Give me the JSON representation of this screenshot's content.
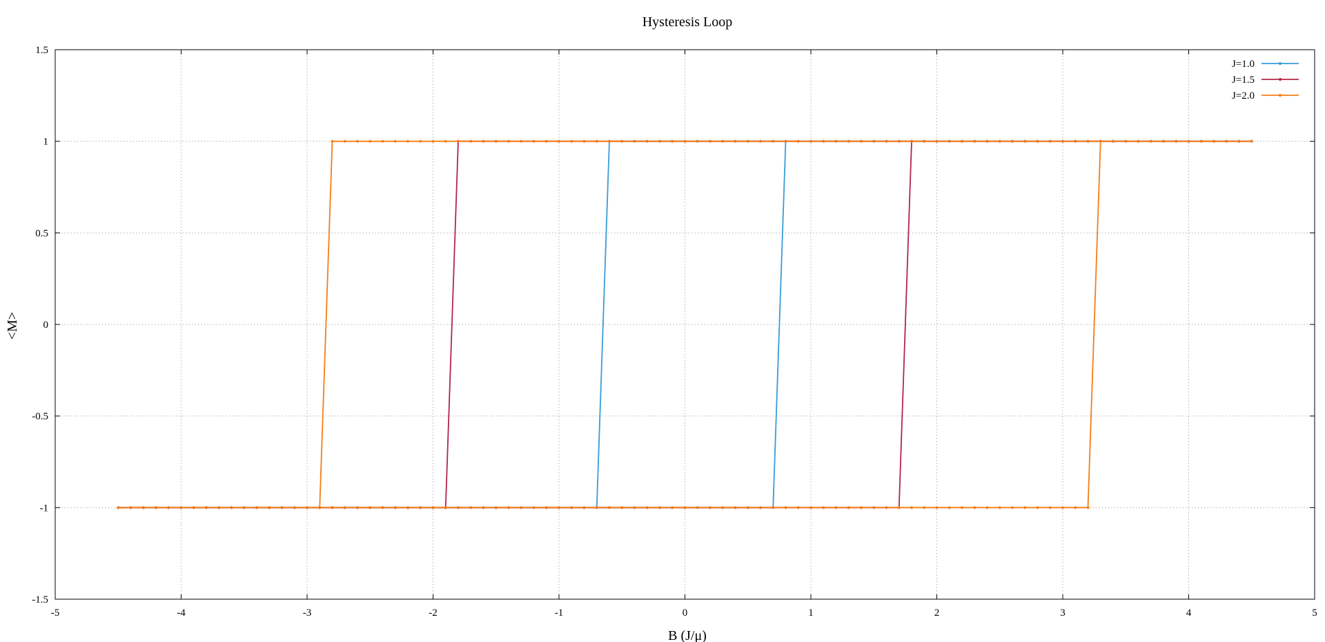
{
  "chart_data": {
    "type": "line",
    "title": "Hysteresis Loop",
    "xlabel": "B (J/μ)",
    "ylabel": "<M>",
    "xlim": [
      -5,
      5
    ],
    "ylim": [
      -1.5,
      1.5
    ],
    "xticks": [
      -5,
      -4,
      -3,
      -2,
      -1,
      0,
      1,
      2,
      3,
      4,
      5
    ],
    "yticks": [
      -1.5,
      -1,
      -0.5,
      0,
      0.5,
      1,
      1.5
    ],
    "grid": true,
    "legend_position": "top-right",
    "series": [
      {
        "name": "J=1.0",
        "color": "#3a9ad9",
        "x_min": -4.5,
        "x_max": 4.5,
        "step": 0.1,
        "up_switch": [
          0.7,
          0.8
        ],
        "down_switch": [
          -0.6,
          -0.7
        ]
      },
      {
        "name": "J=1.5",
        "color": "#b22448",
        "x_min": -4.5,
        "x_max": 4.5,
        "step": 0.1,
        "up_switch": [
          1.7,
          1.8
        ],
        "down_switch": [
          -1.8,
          -1.9
        ]
      },
      {
        "name": "J=2.0",
        "color": "#f57d15",
        "x_min": -4.5,
        "x_max": 4.5,
        "step": 0.1,
        "up_switch": [
          3.2,
          3.3
        ],
        "down_switch": [
          -2.8,
          -2.9
        ]
      }
    ]
  }
}
